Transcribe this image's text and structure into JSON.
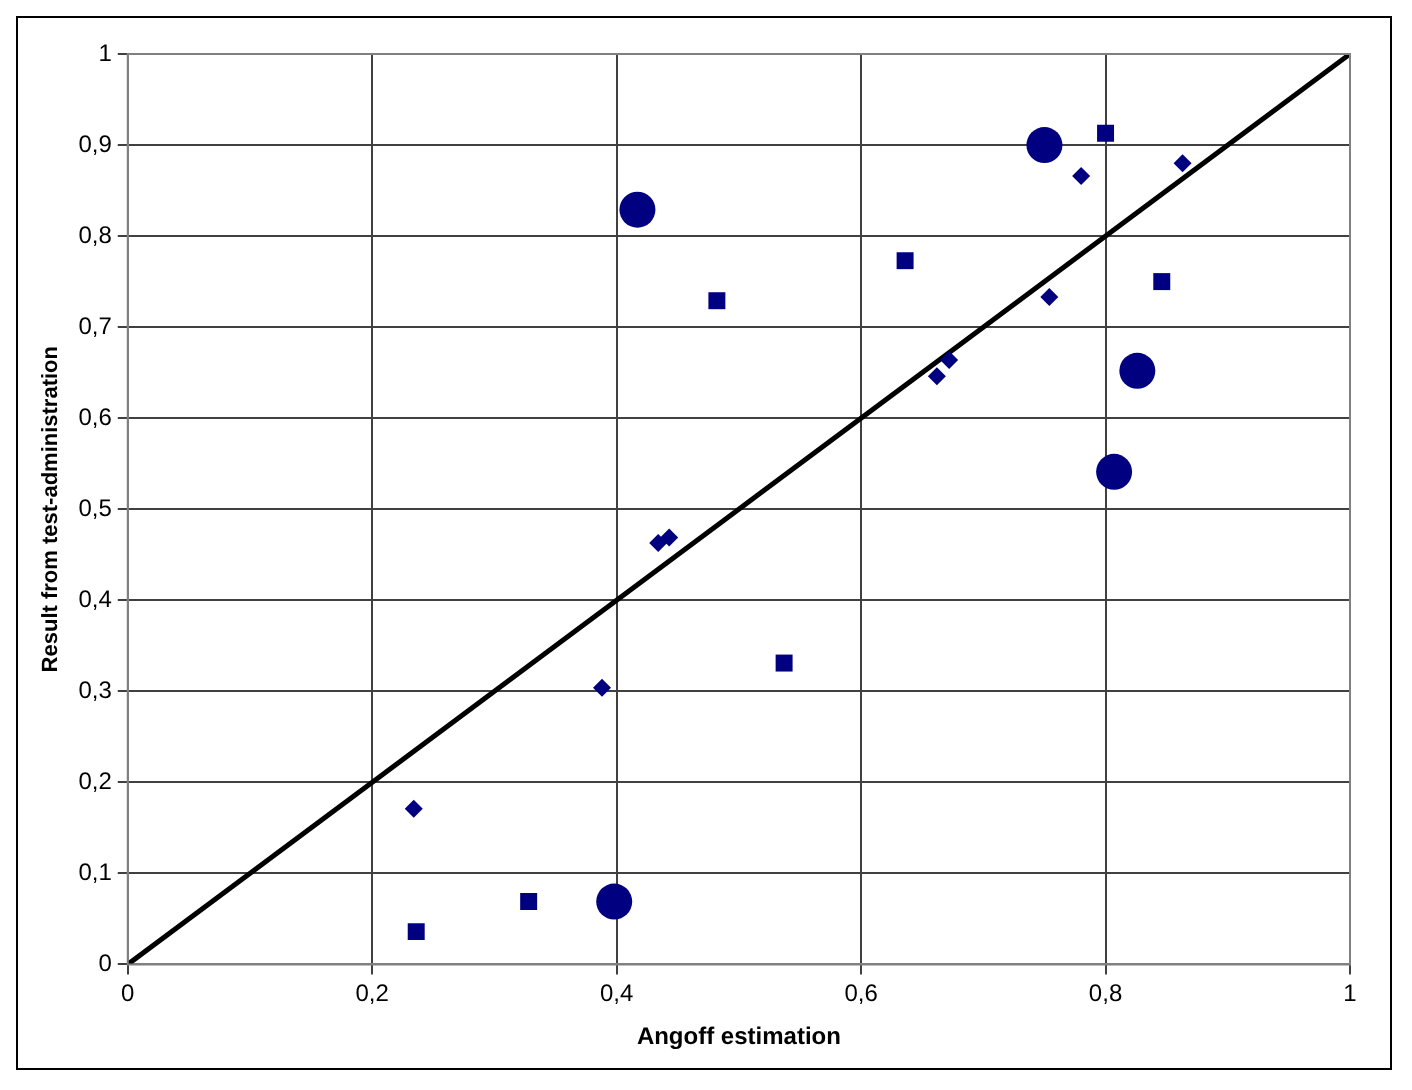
{
  "chart_data": {
    "type": "scatter",
    "xlabel": "Angoff estimation",
    "ylabel": "Result from test-administration",
    "xlim": [
      0,
      1
    ],
    "ylim": [
      0,
      1
    ],
    "xticks": [
      0,
      {
        "value": 0.2,
        "label": "0,2"
      },
      {
        "value": 0.4,
        "label": "0,4"
      },
      {
        "value": 0.6,
        "label": "0,6"
      },
      {
        "value": 0.8,
        "label": "0,8"
      },
      1
    ],
    "yticks": [
      0,
      {
        "value": 0.1,
        "label": "0,1"
      },
      {
        "value": 0.2,
        "label": "0,2"
      },
      {
        "value": 0.3,
        "label": "0,3"
      },
      {
        "value": 0.4,
        "label": "0,4"
      },
      {
        "value": 0.5,
        "label": "0,5"
      },
      {
        "value": 0.6,
        "label": "0,6"
      },
      {
        "value": 0.7,
        "label": "0,7"
      },
      {
        "value": 0.8,
        "label": "0,8"
      },
      {
        "value": 0.9,
        "label": "0,9"
      },
      1
    ],
    "grid": true,
    "legend": false,
    "series": [
      {
        "marker": "circle",
        "color": "#000080",
        "x": [
          0.417,
          0.75,
          0.826,
          0.807,
          0.398
        ],
        "values": [
          0.829,
          0.9,
          0.652,
          0.541,
          0.069
        ]
      },
      {
        "marker": "square",
        "color": "#000080",
        "x": [
          0.8,
          0.846,
          0.482,
          0.636,
          0.537,
          0.328,
          0.236
        ],
        "values": [
          0.913,
          0.75,
          0.729,
          0.773,
          0.331,
          0.069,
          0.036
        ]
      },
      {
        "marker": "diamond",
        "color": "#000080",
        "x": [
          0.234,
          0.388,
          0.434,
          0.443,
          0.662,
          0.672,
          0.754,
          0.78,
          0.863
        ],
        "values": [
          0.171,
          0.304,
          0.463,
          0.469,
          0.646,
          0.664,
          0.733,
          0.866,
          0.88
        ]
      },
      {
        "type": "line",
        "marker": "none",
        "color": "#000000",
        "x": [
          0,
          1
        ],
        "values": [
          0,
          1
        ]
      }
    ]
  }
}
